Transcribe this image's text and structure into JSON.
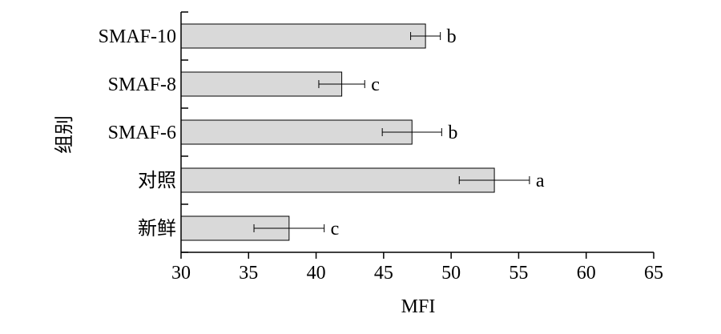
{
  "chart_data": {
    "type": "bar",
    "orientation": "horizontal",
    "categories": [
      "新鲜",
      "对照",
      "SMAF-6",
      "SMAF-8",
      "SMAF-10"
    ],
    "values": [
      38.0,
      53.2,
      47.1,
      41.9,
      48.1
    ],
    "errors": [
      2.6,
      2.6,
      2.2,
      1.7,
      1.1
    ],
    "significance": [
      "c",
      "a",
      "b",
      "c",
      "b"
    ],
    "xlabel": "MFI",
    "ylabel": "组别",
    "xlim": [
      30,
      65
    ],
    "xticks": [
      30,
      35,
      40,
      45,
      50,
      55,
      60,
      65
    ],
    "bar_color": "#d9d9d9",
    "edge_color": "#000000",
    "grid": false,
    "legend": "none"
  }
}
